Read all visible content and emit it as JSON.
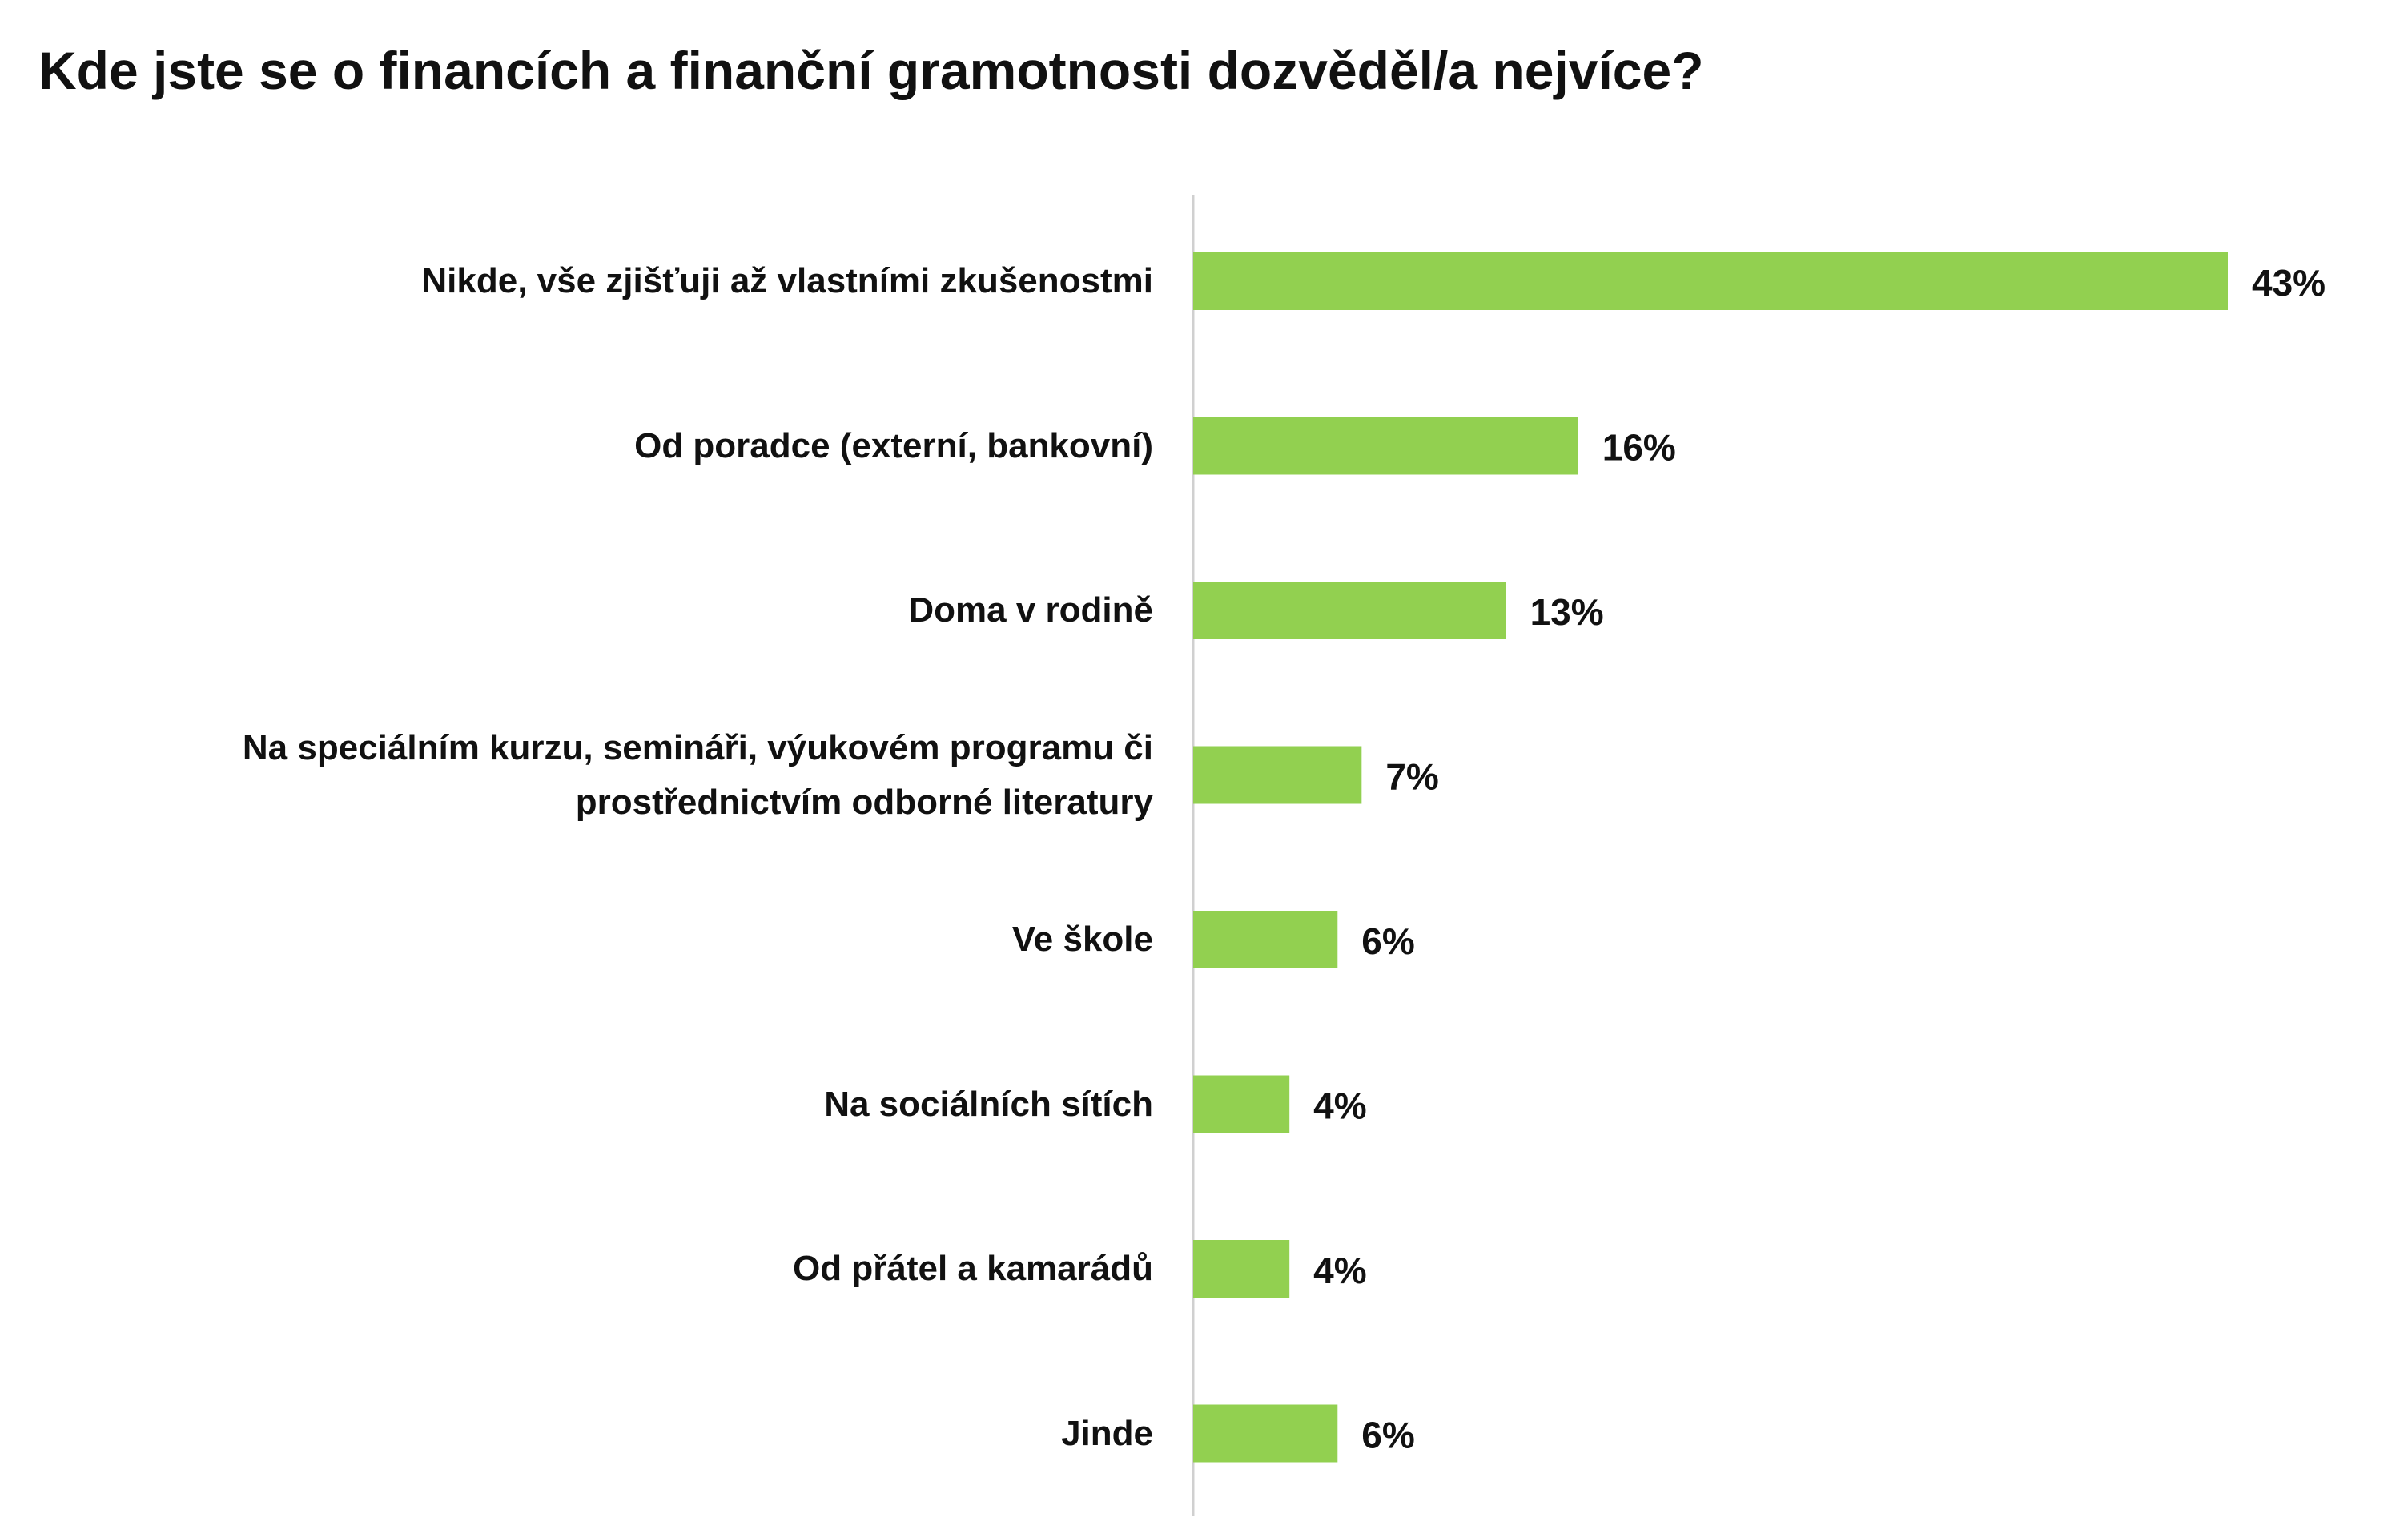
{
  "chart_data": {
    "type": "bar",
    "orientation": "horizontal",
    "title": "Kde jste se o financích a finanční gramotnosti dozvěděl/a nejvíce?",
    "categories": [
      "Nikde, vše zjišťuji až vlastními zkušenostmi",
      "Od poradce (externí, bankovní)",
      "Doma v rodině",
      "Na speciálním kurzu, semináři, výukovém programu či prostřednictvím odborné literatury",
      "Ve škole",
      "Na sociálních sítích",
      "Od přátel a kamarádů",
      "Jinde"
    ],
    "values": [
      43,
      16,
      13,
      7,
      6,
      4,
      4,
      6
    ],
    "value_labels": [
      "43%",
      "16%",
      "13%",
      "7%",
      "6%",
      "4%",
      "4%",
      "6%"
    ],
    "color": "#92d050"
  }
}
